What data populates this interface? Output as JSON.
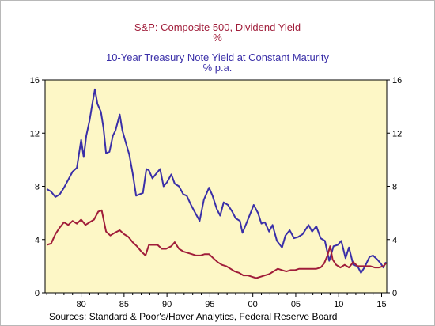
{
  "chart_data": {
    "type": "line",
    "titles": [
      {
        "text": "S&P: Composite 500, Dividend Yield",
        "color": "#a01d3a"
      },
      {
        "text": "%",
        "color": "#a01d3a"
      },
      {
        "text": "10-Year Treasury Note Yield at Constant Maturity",
        "color": "#3a2fa8"
      },
      {
        "text": "% p.a.",
        "color": "#3a2fa8"
      }
    ],
    "xlabel": "",
    "ylabel": "",
    "xlim": [
      1975.8,
      2015.6
    ],
    "ylim": [
      0,
      16
    ],
    "x_ticks": [
      1980,
      1985,
      1990,
      1995,
      2000,
      2005,
      2010,
      2015
    ],
    "x_tick_labels": [
      "80",
      "85",
      "90",
      "95",
      "00",
      "05",
      "10",
      "15"
    ],
    "y_ticks": [
      0,
      4,
      8,
      12,
      16
    ],
    "y_tick_labels": [
      "0",
      "4",
      "8",
      "12",
      "16"
    ],
    "grid": false,
    "plot_background": "#fdf7c6",
    "series": [
      {
        "color": "#3a2fa8",
        "points": [
          [
            1976.0,
            7.8
          ],
          [
            1976.5,
            7.6
          ],
          [
            1977.0,
            7.2
          ],
          [
            1977.5,
            7.4
          ],
          [
            1978.0,
            7.9
          ],
          [
            1978.5,
            8.5
          ],
          [
            1979.0,
            9.1
          ],
          [
            1979.5,
            9.4
          ],
          [
            1980.0,
            11.5
          ],
          [
            1980.3,
            10.2
          ],
          [
            1980.6,
            11.8
          ],
          [
            1981.0,
            13.0
          ],
          [
            1981.3,
            14.2
          ],
          [
            1981.6,
            15.3
          ],
          [
            1981.9,
            14.2
          ],
          [
            1982.3,
            13.6
          ],
          [
            1982.6,
            12.4
          ],
          [
            1982.9,
            10.5
          ],
          [
            1983.3,
            10.6
          ],
          [
            1983.7,
            11.8
          ],
          [
            1984.0,
            12.2
          ],
          [
            1984.5,
            13.4
          ],
          [
            1984.8,
            12.2
          ],
          [
            1985.2,
            11.3
          ],
          [
            1985.6,
            10.4
          ],
          [
            1986.0,
            9.0
          ],
          [
            1986.4,
            7.3
          ],
          [
            1986.8,
            7.4
          ],
          [
            1987.2,
            7.5
          ],
          [
            1987.6,
            9.3
          ],
          [
            1987.9,
            9.2
          ],
          [
            1988.3,
            8.6
          ],
          [
            1988.8,
            9.0
          ],
          [
            1989.2,
            9.3
          ],
          [
            1989.6,
            8.0
          ],
          [
            1990.0,
            8.3
          ],
          [
            1990.5,
            8.9
          ],
          [
            1990.9,
            8.2
          ],
          [
            1991.4,
            8.0
          ],
          [
            1991.9,
            7.4
          ],
          [
            1992.3,
            7.3
          ],
          [
            1992.8,
            6.6
          ],
          [
            1993.3,
            6.0
          ],
          [
            1993.8,
            5.4
          ],
          [
            1994.3,
            7.0
          ],
          [
            1994.9,
            7.9
          ],
          [
            1995.3,
            7.3
          ],
          [
            1995.8,
            6.3
          ],
          [
            1996.2,
            5.8
          ],
          [
            1996.6,
            6.8
          ],
          [
            1997.1,
            6.6
          ],
          [
            1997.6,
            6.1
          ],
          [
            1998.0,
            5.6
          ],
          [
            1998.5,
            5.4
          ],
          [
            1998.8,
            4.5
          ],
          [
            1999.3,
            5.3
          ],
          [
            1999.8,
            6.1
          ],
          [
            2000.1,
            6.6
          ],
          [
            2000.6,
            6.0
          ],
          [
            2001.0,
            5.2
          ],
          [
            2001.4,
            5.3
          ],
          [
            2001.9,
            4.6
          ],
          [
            2002.3,
            5.1
          ],
          [
            2002.8,
            3.9
          ],
          [
            2003.4,
            3.4
          ],
          [
            2003.8,
            4.3
          ],
          [
            2004.3,
            4.7
          ],
          [
            2004.8,
            4.1
          ],
          [
            2005.3,
            4.2
          ],
          [
            2005.8,
            4.4
          ],
          [
            2006.5,
            5.1
          ],
          [
            2006.9,
            4.6
          ],
          [
            2007.4,
            5.0
          ],
          [
            2007.9,
            4.1
          ],
          [
            2008.4,
            3.9
          ],
          [
            2008.9,
            2.4
          ],
          [
            2009.4,
            3.5
          ],
          [
            2009.9,
            3.6
          ],
          [
            2010.3,
            3.9
          ],
          [
            2010.8,
            2.6
          ],
          [
            2011.2,
            3.4
          ],
          [
            2011.7,
            2.1
          ],
          [
            2012.2,
            2.0
          ],
          [
            2012.6,
            1.5
          ],
          [
            2013.0,
            1.9
          ],
          [
            2013.6,
            2.7
          ],
          [
            2014.0,
            2.8
          ],
          [
            2014.5,
            2.5
          ],
          [
            2014.9,
            2.2
          ],
          [
            2015.2,
            1.9
          ],
          [
            2015.5,
            2.3
          ]
        ]
      },
      {
        "color": "#a01d3a",
        "points": [
          [
            1976.0,
            3.6
          ],
          [
            1976.5,
            3.7
          ],
          [
            1977.0,
            4.4
          ],
          [
            1977.5,
            4.9
          ],
          [
            1978.0,
            5.3
          ],
          [
            1978.5,
            5.1
          ],
          [
            1979.0,
            5.4
          ],
          [
            1979.5,
            5.2
          ],
          [
            1980.0,
            5.5
          ],
          [
            1980.5,
            5.1
          ],
          [
            1981.0,
            5.3
          ],
          [
            1981.5,
            5.5
          ],
          [
            1982.0,
            6.1
          ],
          [
            1982.4,
            6.2
          ],
          [
            1982.9,
            4.6
          ],
          [
            1983.4,
            4.3
          ],
          [
            1983.9,
            4.5
          ],
          [
            1984.5,
            4.7
          ],
          [
            1985.0,
            4.4
          ],
          [
            1985.5,
            4.2
          ],
          [
            1986.0,
            3.8
          ],
          [
            1986.5,
            3.5
          ],
          [
            1987.0,
            3.1
          ],
          [
            1987.5,
            2.8
          ],
          [
            1987.9,
            3.6
          ],
          [
            1988.4,
            3.6
          ],
          [
            1988.9,
            3.6
          ],
          [
            1989.4,
            3.3
          ],
          [
            1989.9,
            3.3
          ],
          [
            1990.5,
            3.5
          ],
          [
            1990.9,
            3.8
          ],
          [
            1991.4,
            3.3
          ],
          [
            1991.9,
            3.1
          ],
          [
            1992.4,
            3.0
          ],
          [
            1992.9,
            2.9
          ],
          [
            1993.4,
            2.8
          ],
          [
            1993.9,
            2.8
          ],
          [
            1994.4,
            2.9
          ],
          [
            1994.9,
            2.9
          ],
          [
            1995.4,
            2.6
          ],
          [
            1995.9,
            2.3
          ],
          [
            1996.4,
            2.1
          ],
          [
            1996.9,
            2.0
          ],
          [
            1997.4,
            1.8
          ],
          [
            1997.9,
            1.6
          ],
          [
            1998.4,
            1.5
          ],
          [
            1998.9,
            1.3
          ],
          [
            1999.4,
            1.3
          ],
          [
            1999.9,
            1.2
          ],
          [
            2000.4,
            1.1
          ],
          [
            2000.9,
            1.2
          ],
          [
            2001.4,
            1.3
          ],
          [
            2001.9,
            1.4
          ],
          [
            2002.4,
            1.6
          ],
          [
            2002.9,
            1.8
          ],
          [
            2003.4,
            1.7
          ],
          [
            2003.9,
            1.6
          ],
          [
            2004.4,
            1.7
          ],
          [
            2004.9,
            1.7
          ],
          [
            2005.4,
            1.8
          ],
          [
            2005.9,
            1.8
          ],
          [
            2006.4,
            1.8
          ],
          [
            2006.9,
            1.8
          ],
          [
            2007.4,
            1.8
          ],
          [
            2007.9,
            1.9
          ],
          [
            2008.3,
            2.2
          ],
          [
            2008.7,
            2.8
          ],
          [
            2009.0,
            3.5
          ],
          [
            2009.3,
            2.5
          ],
          [
            2009.7,
            2.1
          ],
          [
            2010.2,
            1.9
          ],
          [
            2010.7,
            2.1
          ],
          [
            2011.2,
            1.9
          ],
          [
            2011.7,
            2.3
          ],
          [
            2012.2,
            2.0
          ],
          [
            2012.7,
            2.0
          ],
          [
            2013.2,
            2.0
          ],
          [
            2013.7,
            2.0
          ],
          [
            2014.2,
            1.9
          ],
          [
            2014.7,
            1.9
          ],
          [
            2015.2,
            2.0
          ],
          [
            2015.5,
            2.2
          ]
        ]
      }
    ],
    "source": "Sources:  Standard & Poor's/Haver Analytics, Federal Reserve Board"
  }
}
